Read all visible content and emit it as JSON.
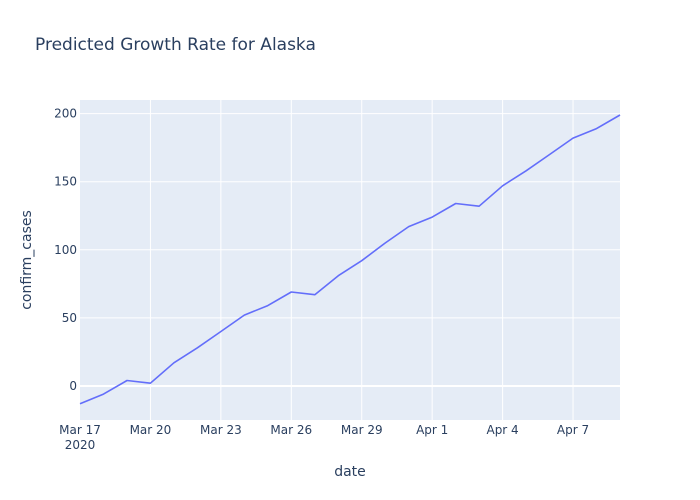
{
  "chart_data": {
    "type": "line",
    "title": "Predicted Growth Rate for Alaska",
    "xlabel": "date",
    "ylabel": "confirm_cases",
    "x_range": [
      "2020-03-17",
      "2020-04-09"
    ],
    "ylim": [
      -25,
      210
    ],
    "x_ticks": [
      {
        "date": "2020-03-17",
        "label": "Mar 17",
        "sublabel": "2020"
      },
      {
        "date": "2020-03-20",
        "label": "Mar 20"
      },
      {
        "date": "2020-03-23",
        "label": "Mar 23"
      },
      {
        "date": "2020-03-26",
        "label": "Mar 26"
      },
      {
        "date": "2020-03-29",
        "label": "Mar 29"
      },
      {
        "date": "2020-04-01",
        "label": "Apr 1"
      },
      {
        "date": "2020-04-04",
        "label": "Apr 4"
      },
      {
        "date": "2020-04-07",
        "label": "Apr 7"
      }
    ],
    "y_ticks": [
      0,
      50,
      100,
      150,
      200
    ],
    "grid": true,
    "line_color": "#636efa",
    "plot_bgcolor": "#e5ecf6",
    "series": [
      {
        "x": [
          "2020-03-17",
          "2020-03-18",
          "2020-03-19",
          "2020-03-20",
          "2020-03-21",
          "2020-03-22",
          "2020-03-23",
          "2020-03-24",
          "2020-03-25",
          "2020-03-26",
          "2020-03-27",
          "2020-03-28",
          "2020-03-29",
          "2020-03-30",
          "2020-03-31",
          "2020-04-01",
          "2020-04-02",
          "2020-04-03",
          "2020-04-04",
          "2020-04-05",
          "2020-04-06",
          "2020-04-07",
          "2020-04-08",
          "2020-04-09"
        ],
        "values": [
          -13,
          -6,
          4,
          2,
          17,
          28,
          40,
          52,
          59,
          69,
          67,
          81,
          92,
          105,
          117,
          124,
          134,
          132,
          147,
          158,
          170,
          182,
          189,
          199
        ]
      }
    ]
  }
}
